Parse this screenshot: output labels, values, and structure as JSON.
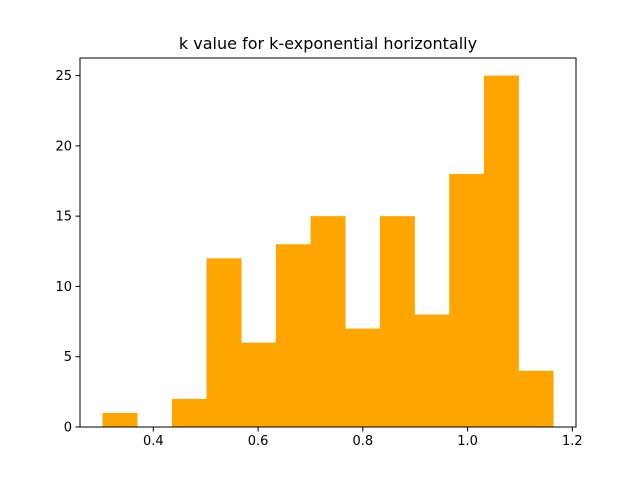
{
  "chart_data": {
    "type": "bar",
    "title": "k value for k-exponential horizontally",
    "xlabel": "",
    "ylabel": "",
    "bin_edges": [
      0.303,
      0.3692,
      0.4354,
      0.5016,
      0.5678,
      0.634,
      0.7002,
      0.7664,
      0.8326,
      0.8988,
      0.965,
      1.0312,
      1.0974,
      1.1636
    ],
    "counts": [
      1,
      0,
      2,
      12,
      6,
      13,
      15,
      7,
      15,
      8,
      18,
      25,
      4
    ],
    "xlim": [
      0.26,
      1.207
    ],
    "ylim": [
      0,
      26.25
    ],
    "x_ticks": [
      0.4,
      0.6,
      0.8,
      1.0,
      1.2
    ],
    "x_tick_labels": [
      "0.4",
      "0.6",
      "0.8",
      "1.0",
      "1.2"
    ],
    "y_ticks": [
      0,
      5,
      10,
      15,
      20,
      25
    ],
    "y_tick_labels": [
      "0",
      "5",
      "10",
      "15",
      "20",
      "25"
    ],
    "bar_color": "#ffa500",
    "grid": false,
    "legend": "none"
  }
}
